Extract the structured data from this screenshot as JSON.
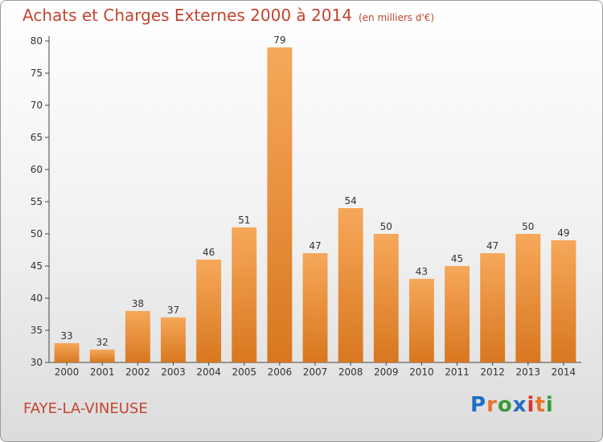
{
  "title": "Achats et Charges Externes 2000 à 2014",
  "subtitle": "(en milliers d'€)",
  "commune": "FAYE-LA-VINEUSE",
  "logo": {
    "text": "Proxiti",
    "colors": [
      "#1f6fc5",
      "#e8742a",
      "#3a9b3a",
      "#1f6fc5",
      "#d9342b",
      "#e8742a",
      "#3a9b3a"
    ]
  },
  "colors": {
    "title": "#c2452e",
    "bar_top": "#f6a85a",
    "bar_bottom": "#d8771f",
    "axis": "#444444",
    "grid": "#dddddd"
  },
  "chart_data": {
    "type": "bar",
    "title": "Achats et Charges Externes 2000 à 2014",
    "subtitle": "(en milliers d'€)",
    "categories": [
      "2000",
      "2001",
      "2002",
      "2003",
      "2004",
      "2005",
      "2006",
      "2007",
      "2008",
      "2009",
      "2010",
      "2011",
      "2012",
      "2013",
      "2014"
    ],
    "values": [
      33,
      32,
      38,
      37,
      46,
      51,
      79,
      47,
      54,
      50,
      43,
      45,
      47,
      50,
      49
    ],
    "data_labels": [
      "33",
      "32",
      "38",
      "37",
      "46",
      "51",
      "79",
      "47",
      "54",
      "50",
      "43",
      "45",
      "47",
      "50",
      "49"
    ],
    "yticks": [
      "30",
      "35",
      "40",
      "45",
      "50",
      "55",
      "60",
      "65",
      "70",
      "75",
      "80"
    ],
    "ylim": [
      30,
      80
    ],
    "xlabel": "",
    "ylabel": "",
    "grid": false,
    "legend": "none"
  }
}
